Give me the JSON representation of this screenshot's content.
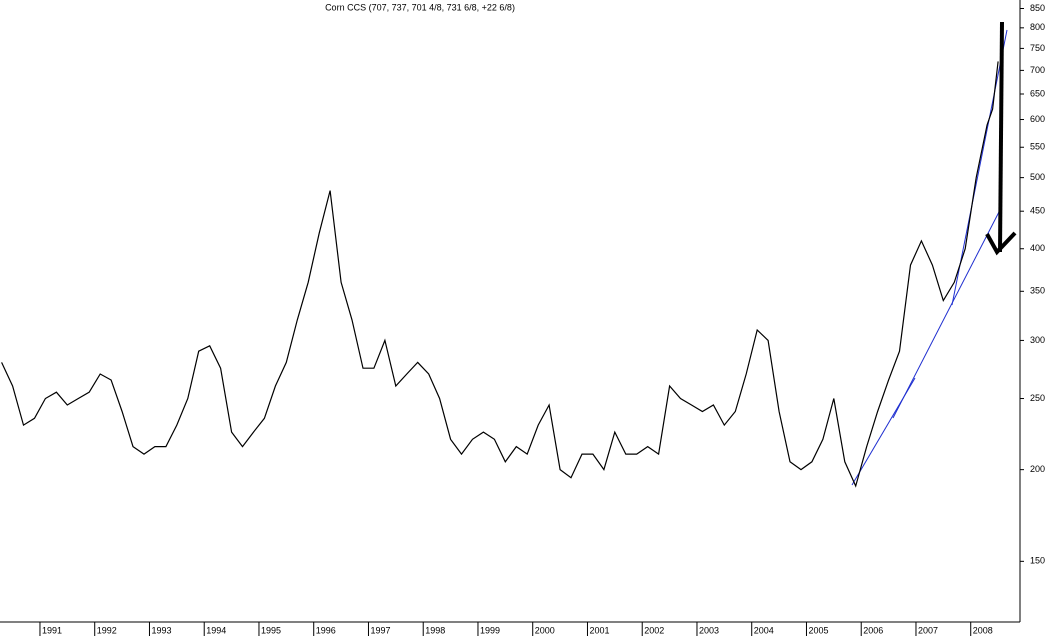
{
  "chart_data": {
    "type": "line",
    "title": "Corn CCS (707, 737, 701 4/8, 731 6/8, +22 6/8)",
    "log_scale": true,
    "xlim": [
      1990.27,
      2008.9
    ],
    "xticks": [
      1991,
      1992,
      1993,
      1994,
      1995,
      1996,
      1997,
      1998,
      1999,
      2000,
      2001,
      2002,
      2003,
      2004,
      2005,
      2006,
      2007,
      2008
    ],
    "ylim": [
      124,
      873
    ],
    "yticks": [
      150,
      200,
      250,
      300,
      350,
      400,
      450,
      500,
      550,
      600,
      650,
      700,
      750,
      800,
      850
    ],
    "series": [
      {
        "name": "Corn CCS",
        "color": "#000000",
        "x": [
          1990.3,
          1990.5,
          1990.7,
          1990.9,
          1991.1,
          1991.3,
          1991.5,
          1991.7,
          1991.9,
          1992.1,
          1992.3,
          1992.5,
          1992.7,
          1992.9,
          1993.1,
          1993.3,
          1993.5,
          1993.7,
          1993.9,
          1994.1,
          1994.3,
          1994.5,
          1994.7,
          1994.9,
          1995.1,
          1995.3,
          1995.5,
          1995.7,
          1995.9,
          1996.1,
          1996.3,
          1996.5,
          1996.7,
          1996.9,
          1997.1,
          1997.3,
          1997.5,
          1997.7,
          1997.9,
          1998.1,
          1998.3,
          1998.5,
          1998.7,
          1998.9,
          1999.1,
          1999.3,
          1999.5,
          1999.7,
          1999.9,
          2000.1,
          2000.3,
          2000.5,
          2000.7,
          2000.9,
          2001.1,
          2001.3,
          2001.5,
          2001.7,
          2001.9,
          2002.1,
          2002.3,
          2002.5,
          2002.7,
          2002.9,
          2003.1,
          2003.3,
          2003.5,
          2003.7,
          2003.9,
          2004.1,
          2004.3,
          2004.5,
          2004.7,
          2004.9,
          2005.1,
          2005.3,
          2005.5,
          2005.7,
          2005.9,
          2006.1,
          2006.3,
          2006.5,
          2006.7,
          2006.9,
          2007.1,
          2007.3,
          2007.5,
          2007.7,
          2007.9,
          2008.1,
          2008.3,
          2008.4,
          2008.5
        ],
        "values": [
          280,
          260,
          230,
          235,
          250,
          255,
          245,
          250,
          255,
          270,
          265,
          240,
          215,
          210,
          215,
          215,
          230,
          250,
          290,
          295,
          275,
          225,
          215,
          225,
          235,
          260,
          280,
          320,
          360,
          420,
          480,
          360,
          320,
          275,
          275,
          300,
          260,
          270,
          280,
          270,
          250,
          220,
          210,
          220,
          225,
          220,
          205,
          215,
          210,
          230,
          245,
          200,
          195,
          210,
          210,
          200,
          225,
          210,
          210,
          215,
          210,
          260,
          250,
          245,
          240,
          245,
          230,
          240,
          270,
          310,
          300,
          240,
          205,
          200,
          205,
          220,
          250,
          205,
          190,
          215,
          240,
          265,
          290,
          380,
          410,
          380,
          340,
          360,
          400,
          500,
          590,
          620,
          720
        ]
      }
    ]
  }
}
